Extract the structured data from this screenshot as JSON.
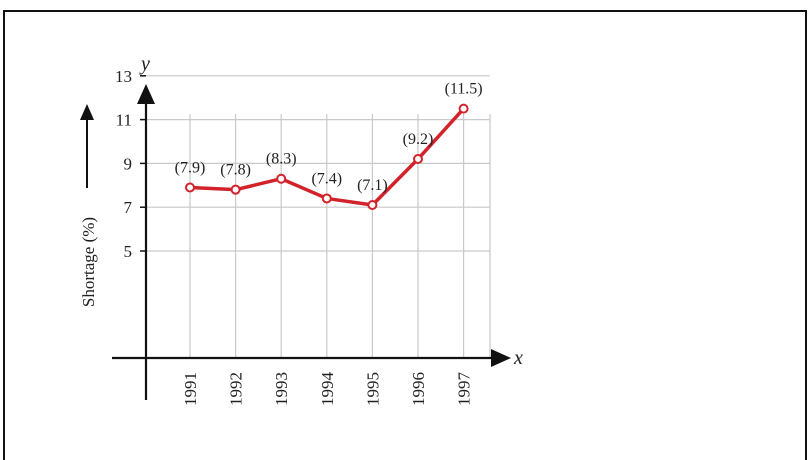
{
  "chart_data": {
    "type": "line",
    "x": [
      1991,
      1992,
      1993,
      1994,
      1995,
      1996,
      1997
    ],
    "x_tick_labels": [
      "1991",
      "1992",
      "1993",
      "1994",
      "1995",
      "1996",
      "1997"
    ],
    "series": [
      {
        "values": [
          7.9,
          7.8,
          8.3,
          7.4,
          7.1,
          9.2,
          11.5
        ]
      }
    ],
    "data_labels": [
      "(7.9)",
      "(7.8)",
      "(8.3)",
      "(7.4)",
      "(7.1)",
      "(9.2)",
      "(11.5)"
    ],
    "y_ticks": [
      5,
      7,
      9,
      11,
      13
    ],
    "y_tick_labels": [
      "5",
      "7",
      "9",
      "11",
      "13"
    ],
    "xlabel": "x",
    "ylabel": "Shortage (%)",
    "y_axis_letter": "y",
    "grid": true,
    "line_color": "#d2232a"
  }
}
